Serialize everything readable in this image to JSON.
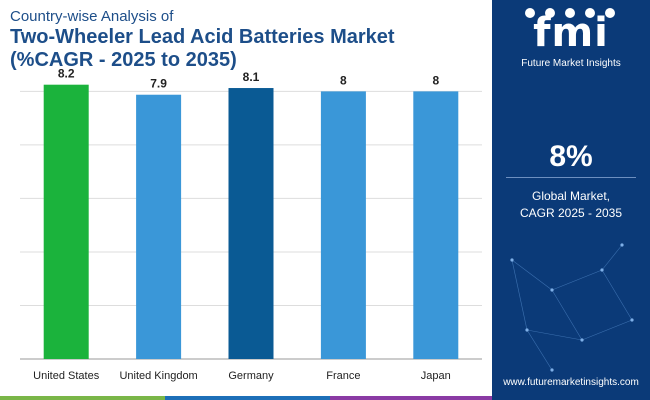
{
  "header": {
    "subtitle": "Country-wise Analysis of",
    "title": "Two-Wheeler Lead Acid Batteries Market",
    "title_line2": "(%CAGR - 2025 to 2035)"
  },
  "side_panel": {
    "logo_text": "fmi",
    "logo_caption": "Future Market Insights",
    "metric_value": "8%",
    "metric_label_line1": "Global Market,",
    "metric_label_line2": "CAGR 2025 - 2035",
    "url": "www.futuremarketinsights.com",
    "background_color": "#0b3a78"
  },
  "chart_data": {
    "type": "bar",
    "categories": [
      "United States",
      "United Kingdom",
      "Germany",
      "France",
      "Japan"
    ],
    "values": [
      8.2,
      7.9,
      8.1,
      8,
      8
    ],
    "value_labels": [
      "8.2",
      "7.9",
      "8.1",
      "8",
      "8"
    ],
    "colors": [
      "#1bb33c",
      "#3a97d8",
      "#0a5a94",
      "#3a97d8",
      "#3a97d8"
    ],
    "ylim": [
      0,
      8.4
    ],
    "grid": true,
    "axis_labels_shown": false
  },
  "bottom_strip_colors": [
    "#7ab648",
    "#1d6fb8",
    "#8a3aa4"
  ]
}
